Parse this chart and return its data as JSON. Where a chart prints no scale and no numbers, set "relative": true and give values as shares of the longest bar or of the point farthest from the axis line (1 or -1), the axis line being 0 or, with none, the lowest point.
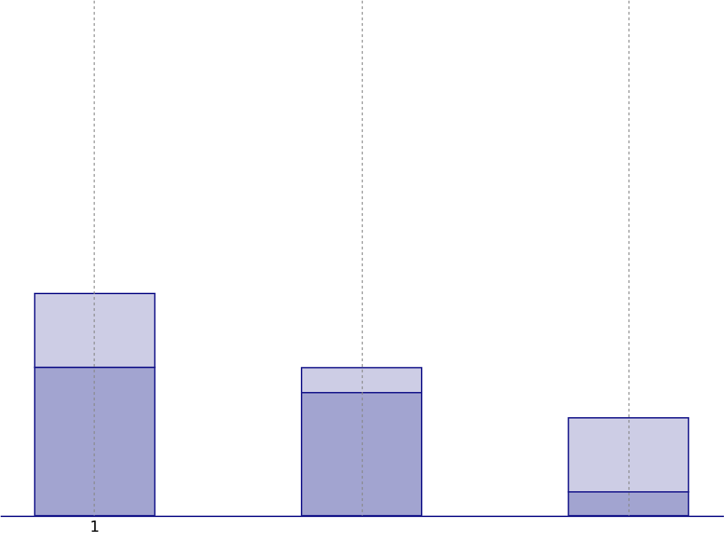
{
  "chart_data": {
    "type": "bar",
    "stacked": true,
    "relative": true,
    "categories": [
      "1",
      null,
      null
    ],
    "series": [
      {
        "color": "#a2a4d0",
        "values": [
          0.667,
          0.553,
          0.107
        ]
      },
      {
        "color": "#cdcde5",
        "values": [
          0.333,
          0.113,
          0.333
        ]
      }
    ],
    "grid": "x"
  }
}
